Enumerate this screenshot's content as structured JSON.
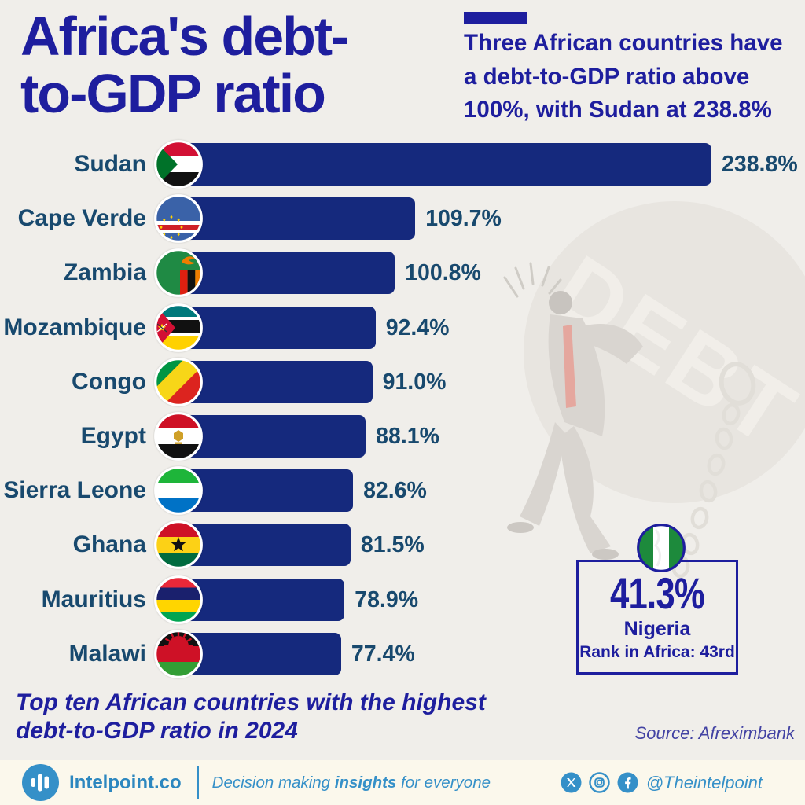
{
  "page": {
    "background_color": "#f0eeea"
  },
  "header": {
    "title_line1": "Africa's debt-",
    "title_line2": "to-GDP ratio",
    "annotation_line1": "Three African countries have",
    "annotation_line2": "a debt-to-GDP ratio above",
    "annotation_line3": "100%, with Sudan at 238.8%",
    "accent_color": "#1e1e9e"
  },
  "chart_data": {
    "type": "bar",
    "orientation": "horizontal",
    "unit": "%",
    "categories": [
      "Sudan",
      "Cape Verde",
      "Zambia",
      "Mozambique",
      "Congo",
      "Egypt",
      "Sierra Leone",
      "Ghana",
      "Mauritius",
      "Malawi"
    ],
    "values": [
      238.8,
      109.7,
      100.8,
      92.4,
      91.0,
      88.1,
      82.6,
      81.5,
      78.9,
      77.4
    ],
    "value_labels": [
      "238.8%",
      "109.7%",
      "100.8%",
      "92.4%",
      "91.0%",
      "88.1%",
      "82.6%",
      "81.5%",
      "78.9%",
      "77.4%"
    ],
    "flags": [
      "sudan",
      "cape-verde",
      "zambia",
      "mozambique",
      "congo",
      "egypt",
      "sierra-leone",
      "ghana",
      "mauritius",
      "malawi"
    ],
    "xlim": [
      0,
      238.8
    ],
    "grid": false,
    "legend": "none",
    "bar_color": "#15297d",
    "category_label_color": "#18496e"
  },
  "callout": {
    "value": "41.3%",
    "country": "Nigeria",
    "rank_text": "Rank in Africa: 43rd",
    "flag": "nigeria"
  },
  "caption_line1": "Top ten African countries with the highest",
  "caption_line2": "debt-to-GDP ratio in 2024",
  "source": "Source: Afreximbank",
  "watermark_text": "DEBT",
  "footer": {
    "brand": "Intelpoint.co",
    "tagline_prefix": "Decision making ",
    "tagline_bold": "insights",
    "tagline_suffix": " for everyone",
    "social_icons": [
      "x-twitter",
      "instagram",
      "facebook"
    ],
    "handle": "@Theintelpoint",
    "accent_color": "#3590c8"
  }
}
